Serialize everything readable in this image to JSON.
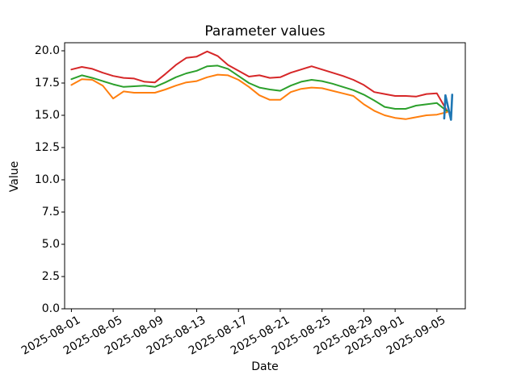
{
  "title": "Parameter values",
  "chart_data": {
    "type": "line",
    "title": "Parameter values",
    "xlabel": "Date",
    "ylabel": "Value",
    "grid": false,
    "legend": "none",
    "ylim": [
      0,
      20.625
    ],
    "xlim_days": [
      -0.65,
      37.72
    ],
    "x_start_date": "2025-08-01",
    "x_ticks": [
      {
        "day": 0,
        "label": "2025-08-01"
      },
      {
        "day": 4,
        "label": "2025-08-05"
      },
      {
        "day": 8,
        "label": "2025-08-09"
      },
      {
        "day": 12,
        "label": "2025-08-13"
      },
      {
        "day": 16,
        "label": "2025-08-17"
      },
      {
        "day": 20,
        "label": "2025-08-21"
      },
      {
        "day": 24,
        "label": "2025-08-25"
      },
      {
        "day": 28,
        "label": "2025-08-29"
      },
      {
        "day": 31,
        "label": "2025-09-01"
      },
      {
        "day": 35,
        "label": "2025-09-05"
      }
    ],
    "y_ticks": [
      {
        "value": 0,
        "label": "0.0"
      },
      {
        "value": 2.5,
        "label": "2.5"
      },
      {
        "value": 5,
        "label": "5.0"
      },
      {
        "value": 7.5,
        "label": "7.5"
      },
      {
        "value": 10,
        "label": "10.0"
      },
      {
        "value": 12.5,
        "label": "12.5"
      },
      {
        "value": 15,
        "label": "15.0"
      },
      {
        "value": 17.5,
        "label": "17.5"
      },
      {
        "value": 20,
        "label": "20.0"
      }
    ],
    "series": [
      {
        "name": "red",
        "color": "#d62728",
        "width": 2,
        "x_start_day": 0,
        "values": [
          18.55,
          18.75,
          18.6,
          18.3,
          18.05,
          17.9,
          17.85,
          17.6,
          17.55,
          18.2,
          18.9,
          19.45,
          19.55,
          19.95,
          19.6,
          18.9,
          18.45,
          18.0,
          18.1,
          17.9,
          17.95,
          18.3,
          18.55,
          18.8,
          18.55,
          18.3,
          18.05,
          17.75,
          17.35,
          16.8,
          16.65,
          16.5,
          16.5,
          16.45,
          16.65,
          16.7,
          15.3
        ]
      },
      {
        "name": "green",
        "color": "#2ca02c",
        "width": 2,
        "x_start_day": 0,
        "values": [
          17.8,
          18.1,
          17.9,
          17.65,
          17.4,
          17.2,
          17.25,
          17.3,
          17.2,
          17.55,
          17.95,
          18.25,
          18.45,
          18.8,
          18.85,
          18.6,
          18.05,
          17.5,
          17.15,
          17.0,
          16.9,
          17.3,
          17.6,
          17.75,
          17.65,
          17.45,
          17.2,
          16.95,
          16.6,
          16.15,
          15.65,
          15.5,
          15.5,
          15.75,
          15.85,
          15.95,
          15.3
        ]
      },
      {
        "name": "orange",
        "color": "#ff7f0e",
        "width": 2,
        "x_start_day": 0,
        "values": [
          17.35,
          17.8,
          17.75,
          17.3,
          16.3,
          16.85,
          16.75,
          16.75,
          16.75,
          17.0,
          17.3,
          17.55,
          17.65,
          17.95,
          18.15,
          18.1,
          17.75,
          17.2,
          16.55,
          16.2,
          16.2,
          16.8,
          17.05,
          17.15,
          17.1,
          16.9,
          16.7,
          16.5,
          15.85,
          15.35,
          15.0,
          14.8,
          14.7,
          14.85,
          15.0,
          15.05,
          15.25
        ]
      },
      {
        "name": "blue",
        "color": "#1f77b4",
        "width": 2.6,
        "x_days": [
          35.7,
          35.82,
          36.35,
          36.47
        ],
        "values": [
          14.75,
          16.55,
          14.65,
          16.6
        ]
      }
    ]
  }
}
